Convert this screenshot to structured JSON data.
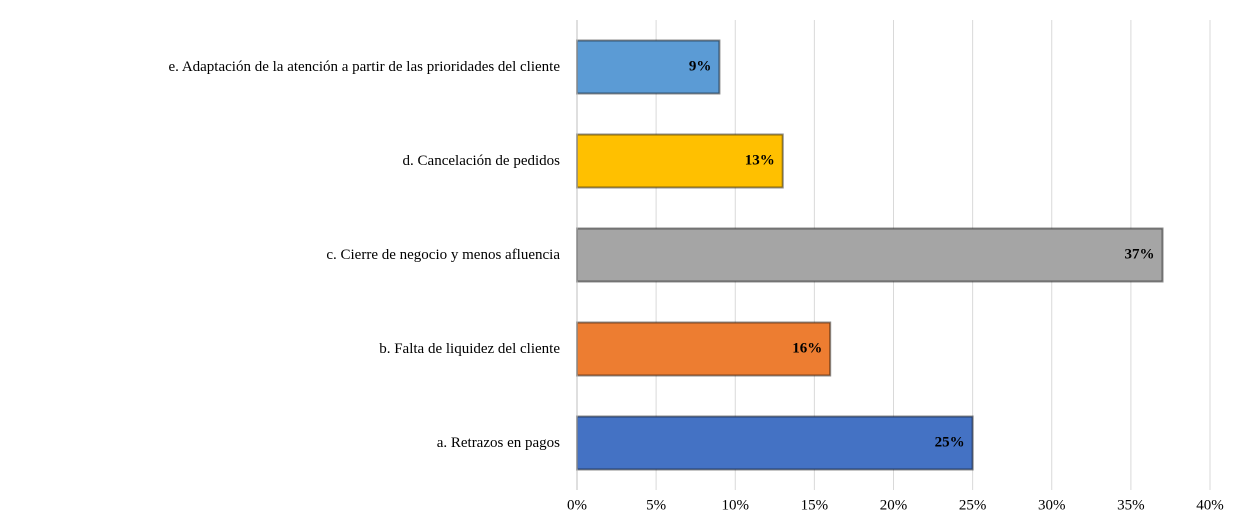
{
  "chart_data": {
    "type": "bar",
    "orientation": "horizontal",
    "categories": [
      "a. Retrazos en pagos",
      "b. Falta de liquidez del cliente",
      "c. Cierre de negocio y menos afluencia",
      "d. Cancelación de pedidos",
      "e. Adaptación de la atención a partir de las prioridades del cliente"
    ],
    "values": [
      25,
      16,
      37,
      13,
      9
    ],
    "value_labels": [
      "25%",
      "16%",
      "37%",
      "13%",
      "9%"
    ],
    "colors": [
      "#4472c4",
      "#ed7d31",
      "#a5a5a5",
      "#ffc000",
      "#5b9bd5"
    ],
    "xlim": [
      0,
      40
    ],
    "xticks": [
      {
        "value": 0,
        "label": "0%"
      },
      {
        "value": 5,
        "label": "5%"
      },
      {
        "value": 10,
        "label": "10%"
      },
      {
        "value": 15,
        "label": "15%"
      },
      {
        "value": 20,
        "label": "20%"
      },
      {
        "value": 25,
        "label": "25%"
      },
      {
        "value": 30,
        "label": "30%"
      },
      {
        "value": 35,
        "label": "35%"
      },
      {
        "value": 40,
        "label": "40%"
      }
    ],
    "grid": true
  }
}
